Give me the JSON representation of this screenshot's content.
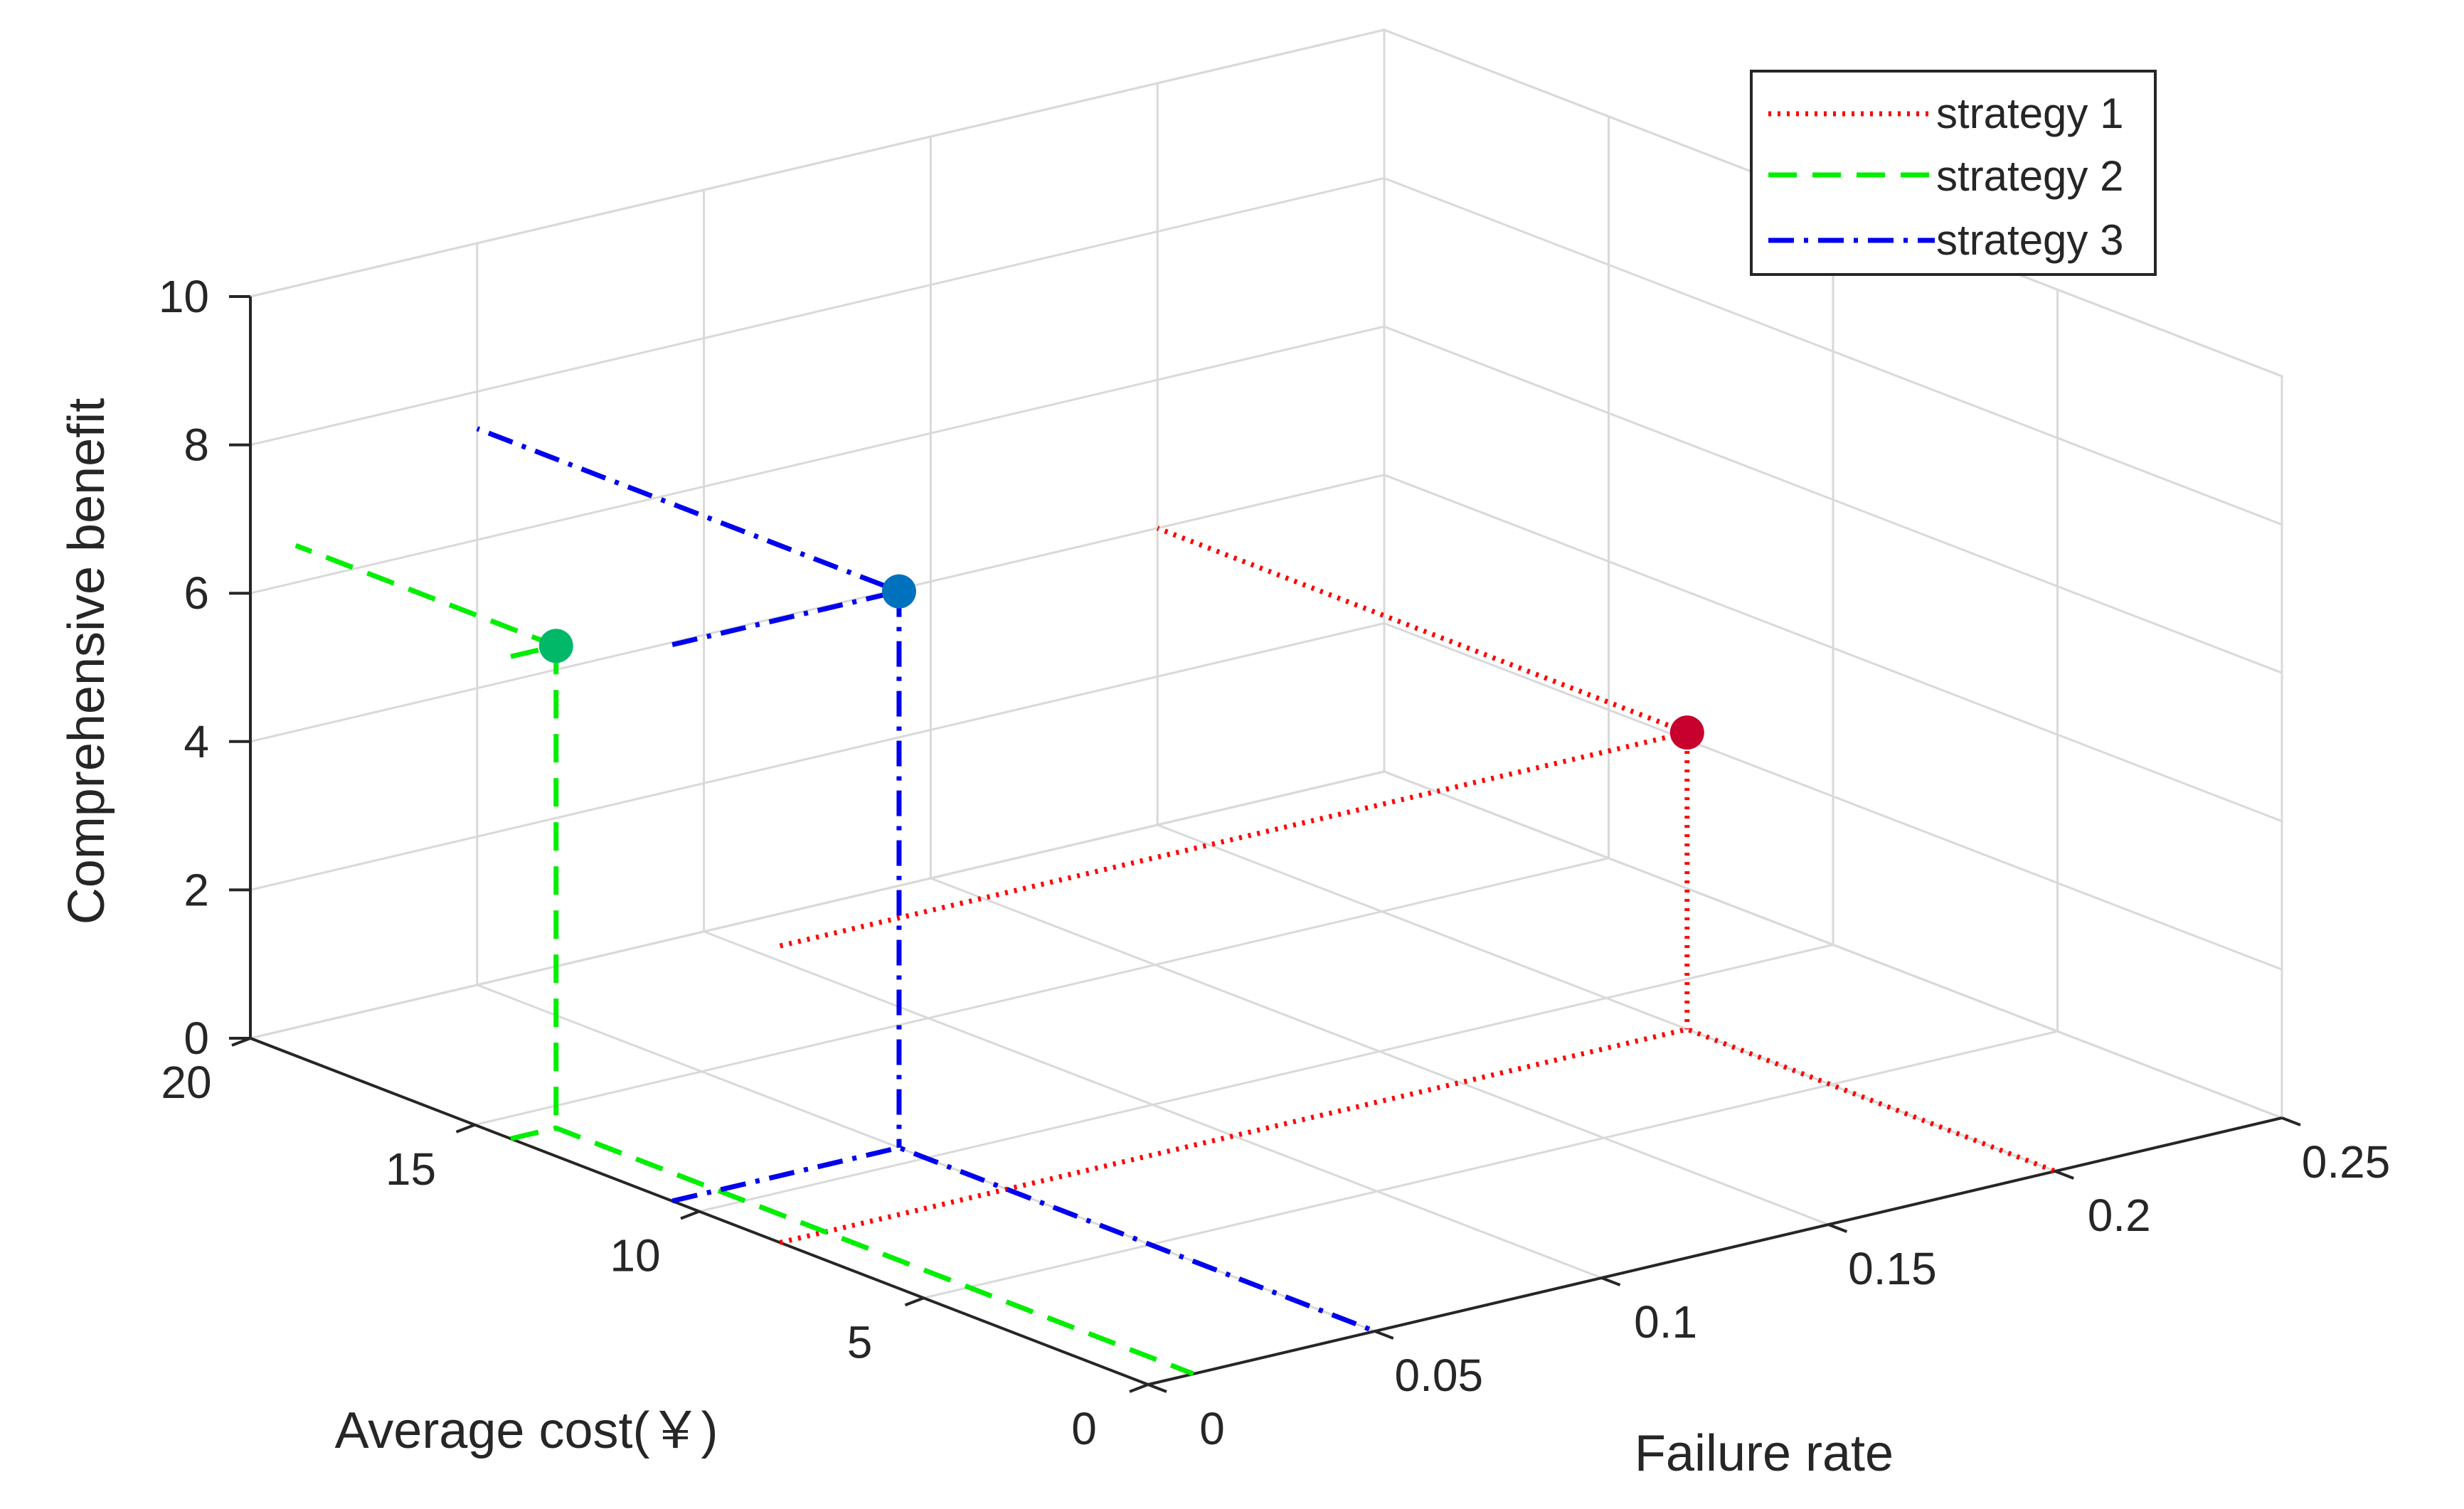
{
  "chart_data": {
    "type": "line",
    "projection": "3d",
    "xlabel": "Failure rate",
    "ylabel": "Average cost(￥)",
    "zlabel": "Comprehensive benefit",
    "x_ticks": [
      "0",
      "0.05",
      "0.1",
      "0.15",
      "0.2",
      "0.25"
    ],
    "y_ticks": [
      "0",
      "5",
      "10",
      "15",
      "20"
    ],
    "z_ticks": [
      "0",
      "2",
      "4",
      "6",
      "8",
      "10"
    ],
    "xlim": [
      0,
      0.25
    ],
    "ylim": [
      0,
      20
    ],
    "zlim": [
      0,
      10
    ],
    "grid": true,
    "legend_position": "top-right",
    "series": [
      {
        "name": "strategy 1",
        "color": "#ff0000",
        "line_style": "dotted",
        "marker_color": "#c8002d",
        "point": {
          "failure_rate": 0.2,
          "average_cost": 8.2,
          "benefit": 4.0
        }
      },
      {
        "name": "strategy 2",
        "color": "#00ee00",
        "line_style": "dashed",
        "marker_color": "#00b868",
        "point": {
          "failure_rate": 0.01,
          "average_cost": 14.2,
          "benefit": 6.5
        }
      },
      {
        "name": "strategy 3",
        "color": "#0000ee",
        "line_style": "dash-dot",
        "marker_color": "#0072bd",
        "point": {
          "failure_rate": 0.05,
          "average_cost": 10.6,
          "benefit": 7.5
        }
      }
    ]
  }
}
